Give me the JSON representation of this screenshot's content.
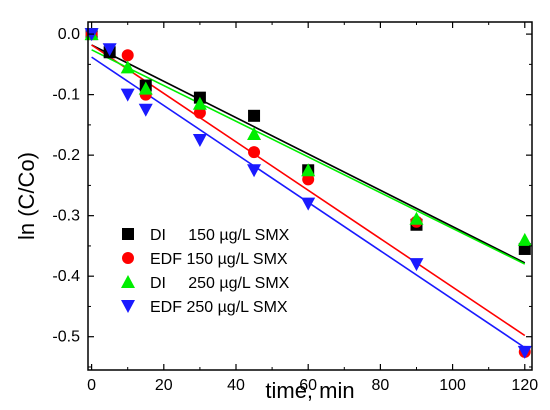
{
  "chart_data": {
    "type": "scatter",
    "title": "",
    "xlabel": "time, min",
    "ylabel": "ln (C/Co)",
    "xlim": [
      -1,
      122
    ],
    "ylim": [
      -0.555,
      0.02
    ],
    "x_ticks": [
      0,
      20,
      40,
      60,
      80,
      100,
      120
    ],
    "x_tick_labels": [
      "0",
      "20",
      "40",
      "60",
      "80",
      "100",
      "120"
    ],
    "y_ticks": [
      0.0,
      -0.1,
      -0.2,
      -0.3,
      -0.4,
      -0.5
    ],
    "y_tick_labels": [
      "0.0",
      "-0.1",
      "-0.2",
      "-0.3",
      "-0.4",
      "-0.5"
    ],
    "grid": false,
    "legend_position": "bottom-left",
    "series": [
      {
        "name": "DI     150 µg/L SMX",
        "marker": "square",
        "color": "#000000",
        "x": [
          0,
          5,
          15,
          30,
          45,
          60,
          90,
          120
        ],
        "y": [
          0.0,
          -0.03,
          -0.085,
          -0.105,
          -0.135,
          -0.225,
          -0.315,
          -0.355
        ],
        "fit": {
          "slope": -0.003,
          "intercept": -0.018
        }
      },
      {
        "name": "EDF 150 µg/L SMX",
        "marker": "circle",
        "color": "#ff0000",
        "x": [
          0,
          10,
          15,
          30,
          45,
          60,
          90,
          120
        ],
        "y": [
          0.0,
          -0.035,
          -0.1,
          -0.13,
          -0.195,
          -0.24,
          -0.31,
          -0.525
        ],
        "fit": {
          "slope": -0.004,
          "intercept": -0.018
        }
      },
      {
        "name": "DI     250 µg/L SMX",
        "marker": "triangle-up",
        "color": "#00ee00",
        "x": [
          0,
          10,
          15,
          30,
          45,
          60,
          90,
          120
        ],
        "y": [
          0.0,
          -0.055,
          -0.09,
          -0.115,
          -0.165,
          -0.225,
          -0.305,
          -0.34
        ],
        "fit": {
          "slope": -0.00295,
          "intercept": -0.026
        }
      },
      {
        "name": "EDF 250 µg/L SMX",
        "marker": "triangle-down",
        "color": "#1a1aff",
        "x": [
          0,
          5,
          10,
          15,
          30,
          45,
          60,
          90,
          120
        ],
        "y": [
          0.0,
          -0.025,
          -0.1,
          -0.125,
          -0.175,
          -0.225,
          -0.28,
          -0.38,
          -0.525
        ],
        "fit": {
          "slope": -0.004,
          "intercept": -0.038
        }
      }
    ]
  }
}
